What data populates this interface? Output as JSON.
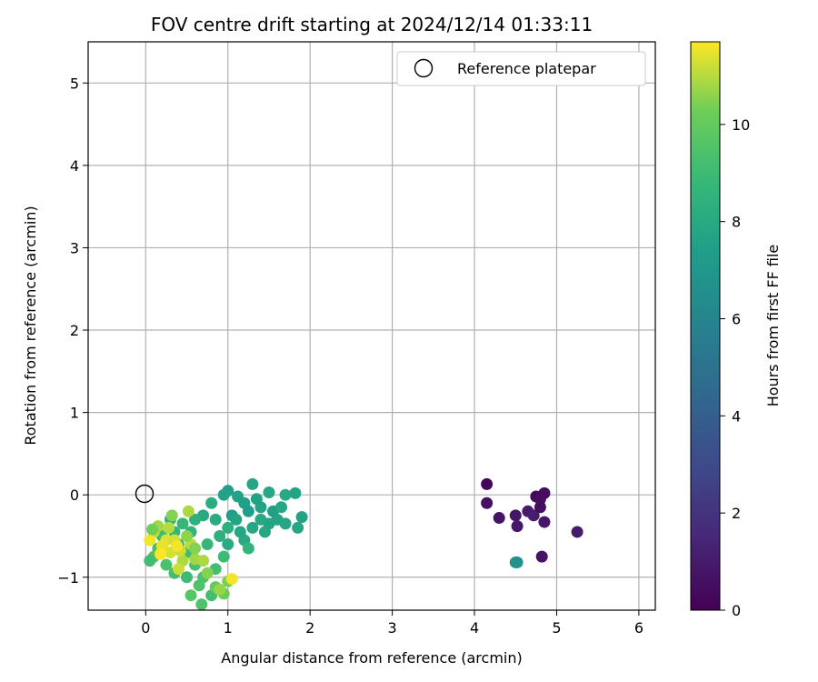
{
  "chart_data": {
    "type": "scatter",
    "title": "FOV centre drift starting at 2024/12/14 01:33:11",
    "xlabel": "Angular distance from reference (arcmin)",
    "ylabel": "Rotation from reference (arcmin)",
    "xlim": [
      -0.7,
      6.2
    ],
    "ylim": [
      -1.4,
      5.5
    ],
    "xticks": [
      0,
      1,
      2,
      3,
      4,
      5,
      6
    ],
    "yticks": [
      -1,
      0,
      1,
      2,
      3,
      4,
      5
    ],
    "grid": true,
    "legend": {
      "position": "top-right",
      "entries": [
        "Reference platepar"
      ]
    },
    "reference_point": {
      "x": 0,
      "y": 0
    },
    "colorbar": {
      "label": "Hours from first FF file",
      "colormap": "viridis",
      "range": [
        0,
        11.7
      ],
      "ticks": [
        0,
        2,
        4,
        6,
        8,
        10
      ]
    },
    "points": [
      [
        4.15,
        0.13,
        0.2
      ],
      [
        4.75,
        -0.02,
        0.3
      ],
      [
        4.85,
        0.02,
        0.4
      ],
      [
        4.8,
        -0.05,
        0.5
      ],
      [
        4.15,
        -0.1,
        0.6
      ],
      [
        4.3,
        -0.28,
        0.7
      ],
      [
        4.5,
        -0.25,
        0.8
      ],
      [
        4.52,
        -0.38,
        0.9
      ],
      [
        4.65,
        -0.2,
        1.0
      ],
      [
        4.72,
        -0.25,
        1.1
      ],
      [
        4.8,
        -0.15,
        0.5
      ],
      [
        4.85,
        -0.33,
        0.8
      ],
      [
        5.25,
        -0.45,
        1.0
      ],
      [
        4.82,
        -0.75,
        0.7
      ],
      [
        4.5,
        -0.82,
        6.6
      ],
      [
        4.52,
        -0.82,
        6.7
      ],
      [
        1.0,
        0.05,
        7.5
      ],
      [
        1.12,
        -0.02,
        7.6
      ],
      [
        1.3,
        0.13,
        7.8
      ],
      [
        1.5,
        0.03,
        7.9
      ],
      [
        1.7,
        0.0,
        8.0
      ],
      [
        1.82,
        0.02,
        7.7
      ],
      [
        1.9,
        -0.27,
        7.6
      ],
      [
        1.85,
        -0.4,
        7.8
      ],
      [
        1.6,
        -0.3,
        7.7
      ],
      [
        1.4,
        -0.15,
        7.6
      ],
      [
        1.2,
        -0.1,
        7.5
      ],
      [
        1.05,
        -0.25,
        7.4
      ],
      [
        1.3,
        -0.4,
        7.8
      ],
      [
        1.45,
        -0.45,
        7.9
      ],
      [
        1.2,
        -0.55,
        8.0
      ],
      [
        1.0,
        -0.6,
        8.1
      ],
      [
        1.1,
        -0.3,
        7.7
      ],
      [
        1.55,
        -0.2,
        7.5
      ],
      [
        1.7,
        -0.35,
        7.8
      ],
      [
        0.95,
        0.0,
        7.6
      ],
      [
        1.25,
        -0.2,
        7.4
      ],
      [
        1.35,
        -0.05,
        7.6
      ],
      [
        1.65,
        -0.15,
        7.9
      ],
      [
        1.15,
        -0.45,
        7.8
      ],
      [
        0.8,
        -0.1,
        8.2
      ],
      [
        0.85,
        -0.3,
        8.1
      ],
      [
        0.7,
        -0.25,
        8.0
      ],
      [
        1.0,
        -0.4,
        8.3
      ],
      [
        1.25,
        -0.65,
        8.6
      ],
      [
        0.9,
        -0.5,
        8.4
      ],
      [
        1.4,
        -0.3,
        8.0
      ],
      [
        1.5,
        -0.35,
        7.7
      ],
      [
        0.6,
        -0.3,
        8.4
      ],
      [
        0.55,
        -0.45,
        8.6
      ],
      [
        0.75,
        -0.6,
        8.8
      ],
      [
        0.95,
        -0.75,
        9.0
      ],
      [
        0.85,
        -0.9,
        9.2
      ],
      [
        0.7,
        -1.0,
        9.4
      ],
      [
        0.6,
        -0.85,
        9.3
      ],
      [
        0.5,
        -0.7,
        9.0
      ],
      [
        0.4,
        -0.6,
        8.9
      ],
      [
        0.35,
        -0.45,
        8.7
      ],
      [
        0.3,
        -0.3,
        8.5
      ],
      [
        0.45,
        -0.35,
        8.8
      ],
      [
        0.2,
        -0.5,
        9.0
      ],
      [
        0.15,
        -0.65,
        9.3
      ],
      [
        0.1,
        -0.75,
        9.6
      ],
      [
        0.05,
        -0.8,
        9.1
      ],
      [
        0.25,
        -0.85,
        9.4
      ],
      [
        0.35,
        -0.95,
        9.2
      ],
      [
        0.5,
        -1.0,
        9.0
      ],
      [
        0.65,
        -1.1,
        9.5
      ],
      [
        0.55,
        -1.22,
        9.7
      ],
      [
        0.68,
        -1.33,
        9.5
      ],
      [
        0.8,
        -1.22,
        9.2
      ],
      [
        0.85,
        -1.12,
        10.0
      ],
      [
        0.95,
        -1.2,
        10.2
      ],
      [
        1.0,
        -1.05,
        10.4
      ],
      [
        0.9,
        -1.15,
        10.7
      ],
      [
        0.75,
        -0.95,
        10.5
      ],
      [
        0.6,
        -0.78,
        10.8
      ],
      [
        0.55,
        -0.6,
        11.0
      ],
      [
        0.45,
        -0.8,
        10.9
      ],
      [
        0.4,
        -0.9,
        11.2
      ],
      [
        0.3,
        -0.7,
        11.3
      ],
      [
        0.25,
        -0.55,
        11.4
      ],
      [
        0.2,
        -0.62,
        11.5
      ],
      [
        0.1,
        -0.45,
        11.1
      ],
      [
        0.05,
        -0.55,
        11.6
      ],
      [
        0.15,
        -0.38,
        10.8
      ],
      [
        0.28,
        -0.4,
        11.0
      ],
      [
        0.35,
        -0.55,
        11.3
      ],
      [
        0.42,
        -0.68,
        11.2
      ],
      [
        0.5,
        -0.5,
        10.6
      ],
      [
        0.6,
        -0.65,
        10.5
      ],
      [
        0.7,
        -0.8,
        10.9
      ],
      [
        0.52,
        -0.2,
        10.9
      ],
      [
        0.32,
        -0.25,
        10.5
      ],
      [
        0.08,
        -0.42,
        10.3
      ],
      [
        1.05,
        -1.02,
        11.6
      ],
      [
        0.18,
        -0.72,
        11.7
      ],
      [
        0.38,
        -0.62,
        11.6
      ]
    ]
  }
}
